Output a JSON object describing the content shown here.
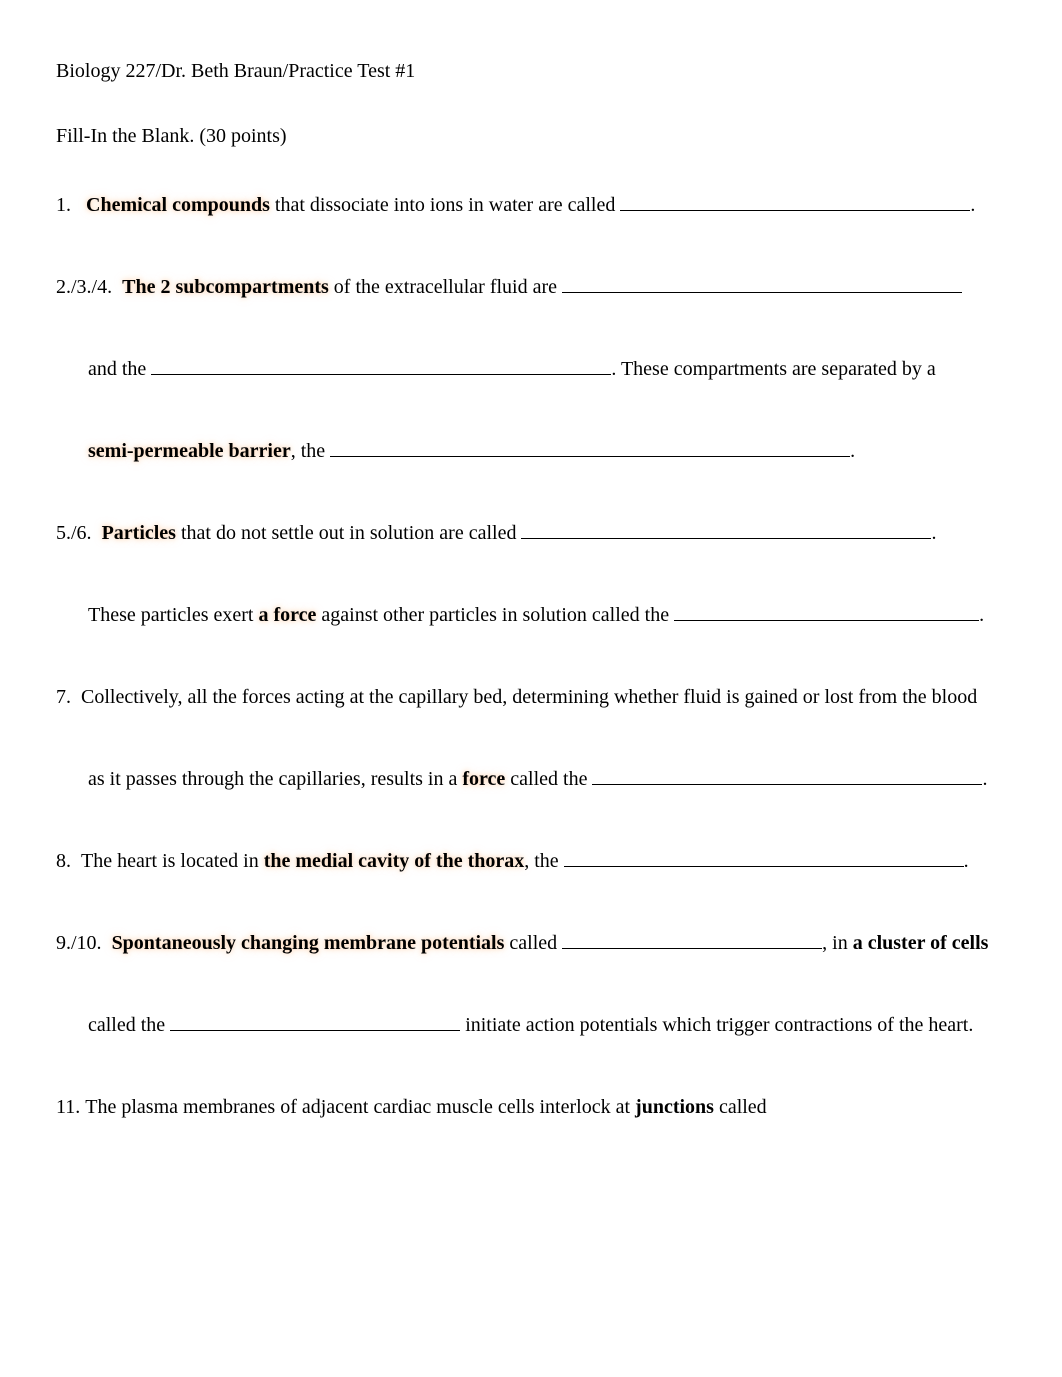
{
  "header": "Biology 227/Dr. Beth Braun/Practice Test #1",
  "section_title": "Fill-In the Blank.  (30 points)",
  "q1": {
    "num": "1.",
    "bold": "Chemical compounds",
    "text": " that dissociate into ions in water are called ",
    "blank_width": 350,
    "end": "."
  },
  "q234": {
    "num": "2./3./4.",
    "bold1": "The 2 subcompartments",
    "text1": " of the extracellular fluid are ",
    "blank1_width": 400,
    "line2_pre": "and the ",
    "blank2_width": 460,
    "line2_post": ".  These compartments are separated by a",
    "bold2": "semi-permeable barrier",
    "line3_text": ", the ",
    "blank3_width": 520,
    "line3_end": "."
  },
  "q56": {
    "num": "5./6.",
    "bold": "Particles",
    "text1": " that do not settle out in solution are called ",
    "blank1_width": 410,
    "end1": ".",
    "line2_pre": "These particles exert ",
    "bold2": "a force",
    "line2_mid": " against other particles in solution called the ",
    "blank2_width": 305,
    "end2": "."
  },
  "q7": {
    "num": "7.",
    "text1": "Collectively, all the forces acting at the capillary bed, determining whether fluid is gained or lost from the blood",
    "line2_pre": "as it passes through the capillaries, results in a ",
    "bold": "force",
    "line2_mid": " called the ",
    "blank_width": 390,
    "end": "."
  },
  "q8": {
    "num": "8.",
    "text": "The heart is located in ",
    "bold": "the medial cavity of the thorax",
    "text2": ", the ",
    "blank_width": 400,
    "end": "."
  },
  "q910": {
    "num": "9./10.",
    "bold1": "Spontaneously changing membrane potentials",
    "text1": " called ",
    "blank1_width": 260,
    "text2": ", in ",
    "bold2": "a cluster of cells",
    "line2_pre": "called the  ",
    "blank2_width": 290,
    "line2_post": "  initiate action potentials which trigger contractions of the heart."
  },
  "q11": {
    "num": "11.",
    "text1": "The plasma membranes of adjacent cardiac muscle cells interlock at ",
    "bold": "junctions",
    "text2": " called"
  },
  "colors": {
    "background": "#ffffff",
    "text": "#000000"
  },
  "typography": {
    "font_family": "Times New Roman",
    "base_fontsize": 20
  }
}
